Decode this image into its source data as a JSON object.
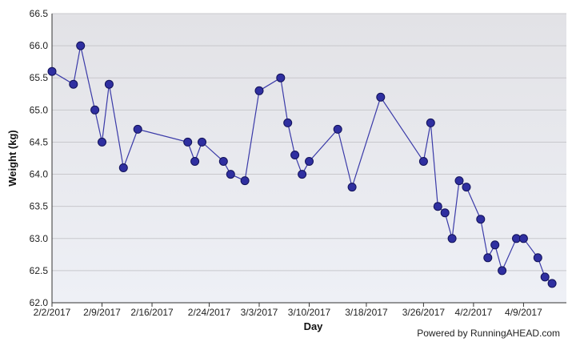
{
  "chart_data": {
    "type": "line",
    "title": "",
    "xlabel": "Day",
    "ylabel": "Weight (kg)",
    "credit": "Powered by RunningAHEAD.com",
    "ylim": [
      62.0,
      66.5
    ],
    "xlim": [
      "2017-02-02",
      "2017-04-15"
    ],
    "grid": true,
    "colors": {
      "line": "#3a3aa8",
      "marker": "#2f2fa0",
      "marker_edge": "#12125a",
      "plot_bg_top": "#e2e2e6",
      "plot_bg_bottom": "#eef0f6",
      "grid": "#c8c8cc"
    },
    "y_ticks": [
      "62.0",
      "62.5",
      "63.0",
      "63.5",
      "64.0",
      "64.5",
      "65.0",
      "65.5",
      "66.0",
      "66.5"
    ],
    "x_ticks": [
      {
        "date": "2017-02-02",
        "label": "2/2/2017"
      },
      {
        "date": "2017-02-09",
        "label": "2/9/2017"
      },
      {
        "date": "2017-02-16",
        "label": "2/16/2017"
      },
      {
        "date": "2017-02-24",
        "label": "2/24/2017"
      },
      {
        "date": "2017-03-03",
        "label": "3/3/2017"
      },
      {
        "date": "2017-03-10",
        "label": "3/10/2017"
      },
      {
        "date": "2017-03-18",
        "label": "3/18/2017"
      },
      {
        "date": "2017-03-26",
        "label": "3/26/2017"
      },
      {
        "date": "2017-04-02",
        "label": "4/2/2017"
      },
      {
        "date": "2017-04-09",
        "label": "4/9/2017"
      }
    ],
    "series": [
      {
        "points": [
          {
            "x": "2017-02-02",
            "y": 65.6
          },
          {
            "x": "2017-02-05",
            "y": 65.4
          },
          {
            "x": "2017-02-06",
            "y": 66.0
          },
          {
            "x": "2017-02-08",
            "y": 65.0
          },
          {
            "x": "2017-02-09",
            "y": 64.5
          },
          {
            "x": "2017-02-10",
            "y": 65.4
          },
          {
            "x": "2017-02-12",
            "y": 64.1
          },
          {
            "x": "2017-02-14",
            "y": 64.7
          },
          {
            "x": "2017-02-21",
            "y": 64.5
          },
          {
            "x": "2017-02-22",
            "y": 64.2
          },
          {
            "x": "2017-02-23",
            "y": 64.5
          },
          {
            "x": "2017-02-26",
            "y": 64.2
          },
          {
            "x": "2017-02-27",
            "y": 64.0
          },
          {
            "x": "2017-03-01",
            "y": 63.9
          },
          {
            "x": "2017-03-03",
            "y": 65.3
          },
          {
            "x": "2017-03-06",
            "y": 65.5
          },
          {
            "x": "2017-03-07",
            "y": 64.8
          },
          {
            "x": "2017-03-08",
            "y": 64.3
          },
          {
            "x": "2017-03-09",
            "y": 64.0
          },
          {
            "x": "2017-03-10",
            "y": 64.2
          },
          {
            "x": "2017-03-14",
            "y": 64.7
          },
          {
            "x": "2017-03-16",
            "y": 63.8
          },
          {
            "x": "2017-03-20",
            "y": 65.2
          },
          {
            "x": "2017-03-26",
            "y": 64.2
          },
          {
            "x": "2017-03-27",
            "y": 64.8
          },
          {
            "x": "2017-03-28",
            "y": 63.5
          },
          {
            "x": "2017-03-29",
            "y": 63.4
          },
          {
            "x": "2017-03-30",
            "y": 63.0
          },
          {
            "x": "2017-03-31",
            "y": 63.9
          },
          {
            "x": "2017-04-01",
            "y": 63.8
          },
          {
            "x": "2017-04-03",
            "y": 63.3
          },
          {
            "x": "2017-04-04",
            "y": 62.7
          },
          {
            "x": "2017-04-05",
            "y": 62.9
          },
          {
            "x": "2017-04-06",
            "y": 62.5
          },
          {
            "x": "2017-04-08",
            "y": 63.0
          },
          {
            "x": "2017-04-09",
            "y": 63.0
          },
          {
            "x": "2017-04-11",
            "y": 62.7
          },
          {
            "x": "2017-04-12",
            "y": 62.4
          },
          {
            "x": "2017-04-13",
            "y": 62.3
          }
        ]
      }
    ]
  }
}
